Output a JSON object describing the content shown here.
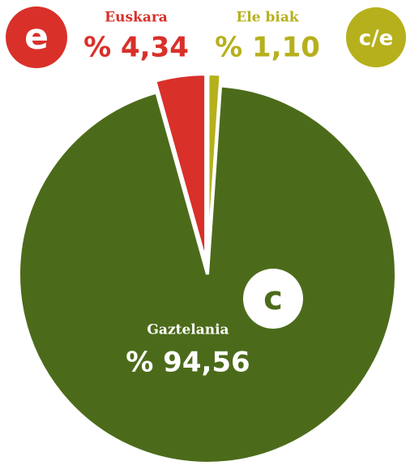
{
  "chart_data": {
    "type": "pie",
    "categories": [
      "Ele biak",
      "Gaztelania",
      "Euskara"
    ],
    "values": [
      1.1,
      94.56,
      4.34
    ],
    "value_labels": [
      "% 1,10",
      "% 94,56",
      "% 4,34"
    ],
    "colors": [
      "#b6b01c",
      "#4c6b1a",
      "#d9302a"
    ],
    "icon_labels": [
      "c/e",
      "c",
      "e"
    ]
  }
}
